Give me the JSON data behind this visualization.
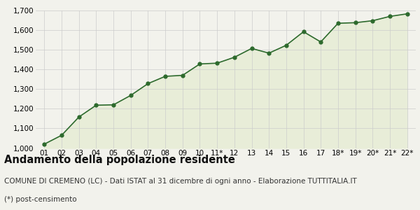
{
  "x_labels": [
    "01",
    "02",
    "03",
    "04",
    "05",
    "06",
    "07",
    "08",
    "09",
    "10",
    "11*",
    "12",
    "13",
    "14",
    "15",
    "16",
    "17",
    "18*",
    "19*",
    "20*",
    "21*",
    "22*"
  ],
  "y_values": [
    1020,
    1065,
    1158,
    1218,
    1220,
    1268,
    1328,
    1365,
    1370,
    1428,
    1432,
    1462,
    1507,
    1483,
    1523,
    1592,
    1540,
    1635,
    1638,
    1648,
    1670,
    1683
  ],
  "ylim": [
    1000,
    1700
  ],
  "yticks": [
    1000,
    1100,
    1200,
    1300,
    1400,
    1500,
    1600,
    1700
  ],
  "ytick_labels": [
    "1,000",
    "1,100",
    "1,200",
    "1,300",
    "1,400",
    "1,500",
    "1,600",
    "1,700"
  ],
  "line_color": "#2d6a2d",
  "fill_color": "#e8edd8",
  "marker_color": "#2d6a2d",
  "bg_color": "#f2f2ec",
  "title": "Andamento della popolazione residente",
  "subtitle": "COMUNE DI CREMENO (LC) - Dati ISTAT al 31 dicembre di ogni anno - Elaborazione TUTTITALIA.IT",
  "footnote": "(*) post-censimento",
  "title_fontsize": 10.5,
  "subtitle_fontsize": 7.5,
  "footnote_fontsize": 7.5,
  "tick_fontsize": 7.5
}
